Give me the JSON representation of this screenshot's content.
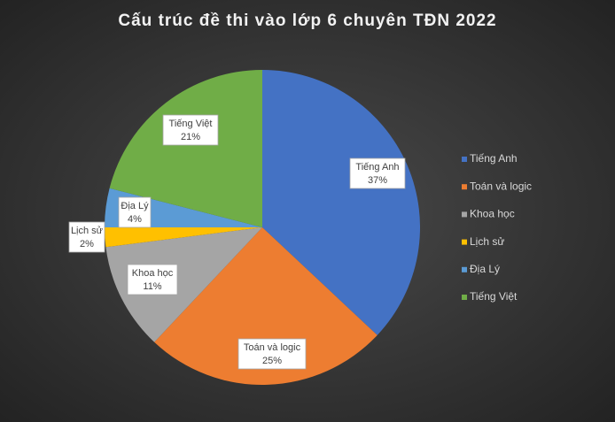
{
  "chart_data": {
    "type": "pie",
    "title": "Cấu trúc đề thi vào lớp 6 chuyên  TĐN  2022",
    "categories": [
      "Tiếng Anh",
      "Toán và logic",
      "Khoa học",
      "Lịch sử",
      "Địa Lý",
      "Tiếng Việt"
    ],
    "values": [
      37,
      25,
      11,
      2,
      4,
      21
    ],
    "value_labels": [
      "37%",
      "25%",
      "11%",
      "2%",
      "4%",
      "21%"
    ],
    "colors": [
      "#4472c4",
      "#ed7d31",
      "#a5a5a5",
      "#ffc000",
      "#5b9bd5",
      "#70ad47"
    ],
    "legend": "right"
  }
}
